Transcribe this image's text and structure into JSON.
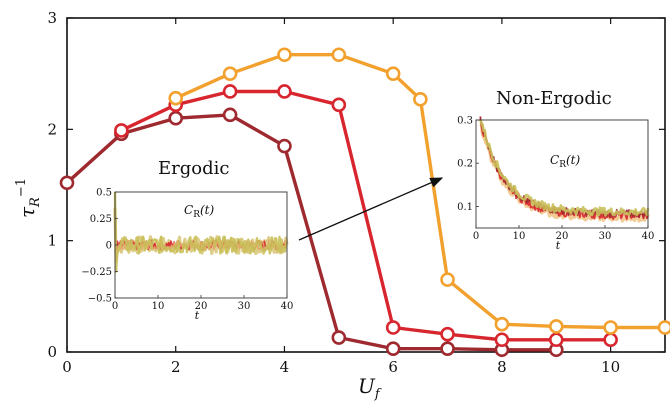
{
  "chart_data": {
    "type": "line",
    "xlabel": "U_f",
    "ylabel": "τ_R^{-1}",
    "xlim": [
      0,
      11
    ],
    "ylim": [
      0,
      3
    ],
    "xticks": [
      "0",
      "2",
      "4",
      "6",
      "8",
      "10"
    ],
    "yticks": [
      "0",
      "1",
      "2",
      "3"
    ],
    "grid": false,
    "series": [
      {
        "color": "#9e2a2f",
        "x": [
          0,
          1,
          2,
          3,
          4,
          5,
          6,
          7,
          8,
          9
        ],
        "y": [
          1.52,
          1.96,
          2.1,
          2.13,
          1.85,
          0.13,
          0.03,
          0.03,
          0.02,
          0.02
        ]
      },
      {
        "color": "#d8262f",
        "x": [
          1,
          2,
          3,
          4,
          5,
          6,
          7,
          8,
          9,
          10
        ],
        "y": [
          1.99,
          2.22,
          2.34,
          2.34,
          2.22,
          0.22,
          0.16,
          0.11,
          0.11,
          0.11
        ]
      },
      {
        "color": "#f2a12e",
        "x": [
          2,
          3,
          4,
          5,
          6,
          6.5,
          7,
          8,
          9,
          10,
          11
        ],
        "y": [
          2.28,
          2.5,
          2.67,
          2.67,
          2.5,
          2.27,
          0.65,
          0.25,
          0.23,
          0.22,
          0.22
        ]
      }
    ],
    "annotations": [
      "Ergodic",
      "Non-Ergodic"
    ],
    "insets": [
      {
        "name": "ergodic-inset",
        "ylabel": "C_R(t)",
        "xlabel": "t",
        "xticks": [
          "0",
          "10",
          "20",
          "30",
          "40"
        ],
        "yticks": [
          "0.5",
          "0.25",
          "0",
          "−0.25",
          "−0.5"
        ],
        "xlim": [
          0,
          40
        ],
        "ylim": [
          -0.5,
          0.5
        ]
      },
      {
        "name": "non-ergodic-inset",
        "ylabel": "C_R(t)",
        "xlabel": "t",
        "xticks": [
          "0",
          "10",
          "20",
          "30",
          "40"
        ],
        "yticks": [
          "0.3",
          "0.2",
          "0.1"
        ],
        "xlim": [
          0,
          40
        ],
        "ylim": [
          0.05,
          0.3
        ]
      }
    ]
  },
  "labels": {
    "ergodic": "Ergodic",
    "non_ergodic": "Non-Ergodic",
    "xlabel_main": "U",
    "xlabel_sub": "f",
    "ylabel_main": "τ",
    "ylabel_sub": "R",
    "ylabel_sup": "−1",
    "inset_cr": "C",
    "inset_cr_sub": "R",
    "inset_cr_arg": "(t)",
    "inset_t": "t"
  }
}
